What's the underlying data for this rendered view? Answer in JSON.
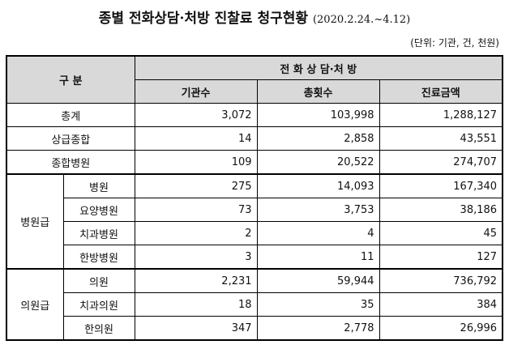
{
  "title": "종별 전화상담·처방 진찰료 청구현황",
  "period": "(2020.2.24.~4.12)",
  "unit": "(단위: 기관, 건, 천원)",
  "header": {
    "category": "구  분",
    "group": "전 화 상 담·처 방",
    "col1": "기관수",
    "col2": "총횟수",
    "col3": "진료금액"
  },
  "rows": {
    "total": {
      "label": "총계",
      "institutions": "3,072",
      "count": "103,998",
      "amount": "1,288,127"
    },
    "tertiary": {
      "label": "상급종합",
      "institutions": "14",
      "count": "2,858",
      "amount": "43,551"
    },
    "general": {
      "label": "종합병원",
      "institutions": "109",
      "count": "20,522",
      "amount": "274,707"
    }
  },
  "hospital_level": {
    "label": "병원급",
    "items": [
      {
        "label": "병원",
        "institutions": "275",
        "count": "14,093",
        "amount": "167,340"
      },
      {
        "label": "요양병원",
        "institutions": "73",
        "count": "3,753",
        "amount": "38,186"
      },
      {
        "label": "치과병원",
        "institutions": "2",
        "count": "4",
        "amount": "45"
      },
      {
        "label": "한방병원",
        "institutions": "3",
        "count": "11",
        "amount": "127"
      }
    ]
  },
  "clinic_level": {
    "label": "의원급",
    "items": [
      {
        "label": "의원",
        "institutions": "2,231",
        "count": "59,944",
        "amount": "736,792"
      },
      {
        "label": "치과의원",
        "institutions": "18",
        "count": "35",
        "amount": "384"
      },
      {
        "label": "한의원",
        "institutions": "347",
        "count": "2,778",
        "amount": "26,996"
      }
    ]
  }
}
